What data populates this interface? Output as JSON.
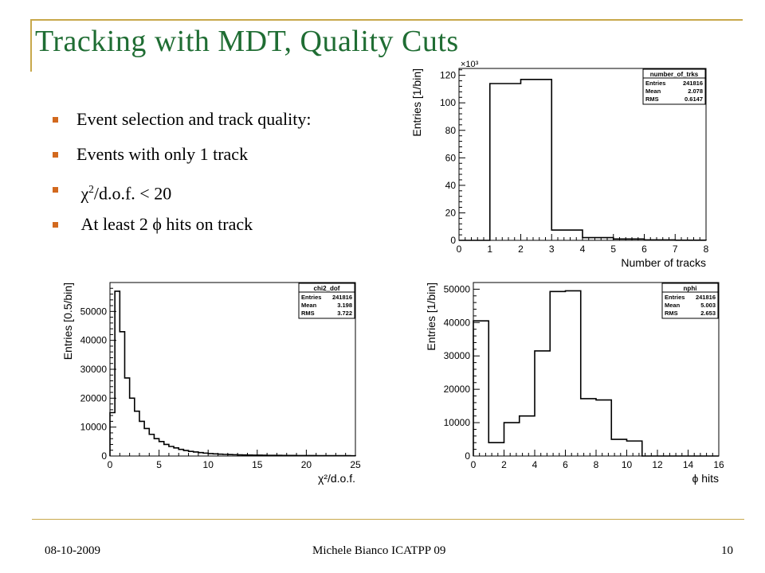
{
  "slide": {
    "title": "Tracking with MDT, Quality Cuts",
    "footer_date": "08-10-2009",
    "footer_center": "Michele Bianco ICATPP 09",
    "page_number": "10",
    "accent_color": "#1f6d33",
    "rule_color": "#c8a84b",
    "bullet_color": "#d2691e"
  },
  "bullets": [
    {
      "text": "Event selection and track quality:"
    },
    {
      "text": "Events with only 1 track"
    },
    {
      "pre": "χ",
      "sup": "2",
      "text": "/d.o.f. < 20"
    },
    {
      "text": "At least 2 ϕ hits on track"
    }
  ],
  "chart_data": [
    {
      "type": "bar",
      "style": "step-histogram",
      "stats": {
        "name": "number_of_trks",
        "rows": [
          [
            "Entries",
            "241816"
          ],
          [
            "Mean",
            "2.078"
          ],
          [
            "RMS",
            "0.6147"
          ]
        ]
      },
      "xlabel": "Number of tracks",
      "ylabel": "Entries [1/bin]",
      "y_multiplier": "×10³",
      "xlim": [
        0,
        8
      ],
      "ylim": [
        0,
        125
      ],
      "xticks": [
        0,
        1,
        2,
        3,
        4,
        5,
        6,
        7,
        8
      ],
      "yticks": [
        0,
        20,
        40,
        60,
        80,
        100,
        120
      ],
      "bin_edges": [
        0,
        1,
        2,
        3,
        4,
        5,
        6,
        7,
        8
      ],
      "values": [
        0,
        114,
        117,
        7.5,
        2,
        1,
        0.3,
        0.1
      ]
    },
    {
      "type": "bar",
      "style": "step-histogram",
      "stats": {
        "name": "chi2_dof",
        "rows": [
          [
            "Entries",
            "241816"
          ],
          [
            "Mean",
            "3.198"
          ],
          [
            "RMS",
            "3.722"
          ]
        ]
      },
      "xlabel": "χ²/d.o.f.",
      "ylabel": "Entries [0.5/bin]",
      "xlim": [
        0,
        25
      ],
      "ylim": [
        0,
        60000
      ],
      "xticks": [
        0,
        5,
        10,
        15,
        20,
        25
      ],
      "yticks": [
        0,
        10000,
        20000,
        30000,
        40000,
        50000
      ],
      "bin_width": 0.5,
      "values": [
        15000,
        57000,
        43000,
        27000,
        20000,
        15500,
        12000,
        9500,
        7500,
        6000,
        5000,
        4000,
        3300,
        2800,
        2300,
        1900,
        1600,
        1400,
        1200,
        1000,
        850,
        750,
        650,
        550,
        500,
        450,
        400,
        350,
        320,
        300,
        280,
        260,
        240,
        220,
        210,
        200,
        190,
        180,
        170,
        160,
        150,
        145,
        140,
        135,
        130,
        125,
        120,
        115,
        110,
        105
      ]
    },
    {
      "type": "bar",
      "style": "step-histogram",
      "stats": {
        "name": "nphi",
        "rows": [
          [
            "Entries",
            "241816"
          ],
          [
            "Mean",
            "5.003"
          ],
          [
            "RMS",
            "2.653"
          ]
        ]
      },
      "xlabel": "ϕ hits",
      "ylabel": "Entries [1/bin]",
      "xlim": [
        0,
        16
      ],
      "ylim": [
        0,
        52000
      ],
      "xticks": [
        0,
        2,
        4,
        6,
        8,
        10,
        12,
        14,
        16
      ],
      "yticks": [
        0,
        10000,
        20000,
        30000,
        40000,
        50000
      ],
      "bin_width": 1,
      "values": [
        40500,
        4000,
        10000,
        12000,
        31500,
        49300,
        49500,
        17200,
        16800,
        5000,
        4500,
        0,
        0,
        0,
        0,
        0
      ]
    }
  ]
}
